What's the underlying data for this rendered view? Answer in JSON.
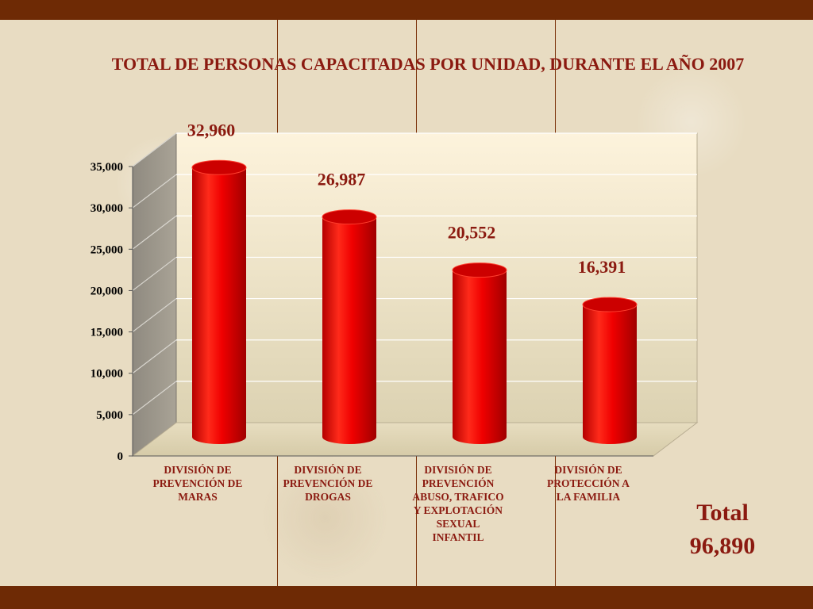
{
  "title": "TOTAL DE PERSONAS CAPACITADAS POR UNIDAD, DURANTE EL AÑO 2007",
  "total_label": "Total",
  "total_value": "96,890",
  "colors": {
    "bar": "#e00000",
    "text": "#8b1a10",
    "band": "#6e2a05"
  },
  "chart_data": {
    "type": "bar",
    "title": "TOTAL DE PERSONAS CAPACITADAS POR UNIDAD, DURANTE EL AÑO 2007",
    "xlabel": "",
    "ylabel": "",
    "categories": [
      "DIVISIÓN DE PREVENCIÓN DE MARAS",
      "DIVISIÓN DE PREVENCIÓN DE DROGAS",
      "DIVISIÓN DE PREVENCIÓN ABUSO, TRAFICO Y EXPLOTACIÓN SEXUAL INFANTIL",
      "DIVISIÓN DE PROTECCIÓN A LA FAMILIA"
    ],
    "category_lines": [
      [
        "DIVISIÓN DE",
        "PREVENCIÓN DE",
        "MARAS"
      ],
      [
        "DIVISIÓN DE",
        "PREVENCIÓN DE",
        "DROGAS"
      ],
      [
        "DIVISIÓN DE",
        "PREVENCIÓN",
        "ABUSO, TRAFICO",
        "Y EXPLOTACIÓN",
        "SEXUAL",
        "INFANTIL"
      ],
      [
        "DIVISIÓN DE",
        "PROTECCIÓN A",
        "LA FAMILIA"
      ]
    ],
    "values": [
      32960,
      26987,
      20552,
      16391
    ],
    "value_labels": [
      "32,960",
      "26,987",
      "20,552",
      "16,391"
    ],
    "ylim": [
      0,
      35000
    ],
    "yticks": [
      0,
      5000,
      10000,
      15000,
      20000,
      25000,
      30000,
      35000
    ],
    "ytick_labels": [
      "0",
      "5,000",
      "10,000",
      "15,000",
      "20,000",
      "25,000",
      "30,000",
      "35,000"
    ],
    "grid": true,
    "style": "3d-cylinder"
  }
}
